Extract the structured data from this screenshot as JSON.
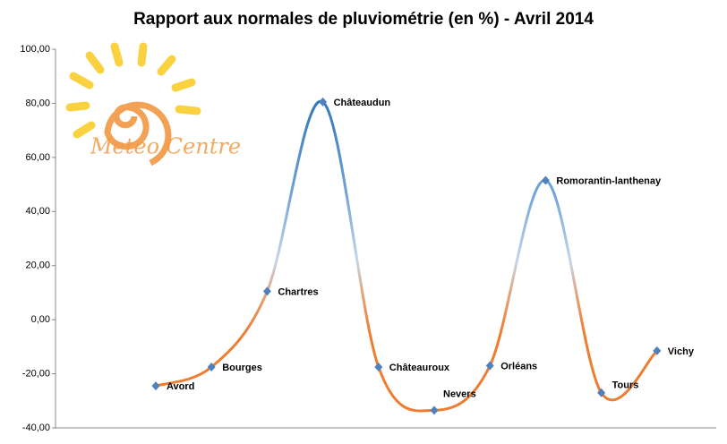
{
  "chart_data": {
    "type": "line",
    "title": "Rapport aux normales de pluviométrie (en %) - Avril 2014",
    "watermark": "Meteo Centre",
    "categories": [
      "Avord",
      "Bourges",
      "Chartres",
      "Châteaudun",
      "Châteauroux",
      "Nevers",
      "Orléans",
      "Romorantin-lanthenay",
      "Tours",
      "Vichy"
    ],
    "series": [
      {
        "name": "Rapport aux normales",
        "color": "#4f81bd",
        "values": [
          -24.5,
          -17.5,
          10.5,
          80.5,
          -17.5,
          -33.5,
          -17,
          51.5,
          -27,
          -11.5
        ]
      }
    ],
    "ylim": [
      -40,
      100
    ],
    "yticks": [
      {
        "value": -40,
        "label": "-40,00"
      },
      {
        "value": -20,
        "label": "-20,00"
      },
      {
        "value": 0,
        "label": "0,00"
      },
      {
        "value": 20,
        "label": "20,00"
      },
      {
        "value": 40,
        "label": "40,00"
      },
      {
        "value": 60,
        "label": "60,00"
      },
      {
        "value": 80,
        "label": "80,00"
      },
      {
        "value": 100,
        "label": "100,00"
      }
    ],
    "grid": false
  }
}
